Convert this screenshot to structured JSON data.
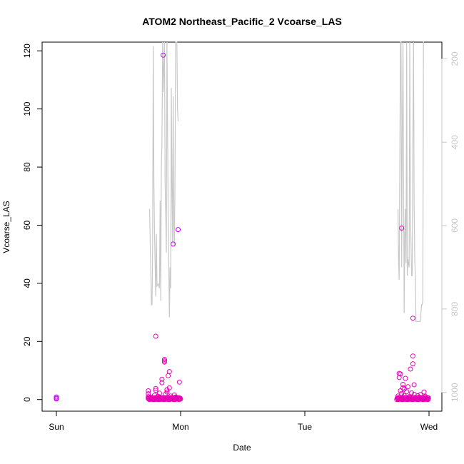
{
  "chart_data": {
    "type": "scatter",
    "title": "ATOM2 Northeast_Pacific_2 Vcoarse_LAS",
    "xlabel": "Date",
    "ylabel": "Vcoarse_LAS",
    "x_ticks": [
      "Sun",
      "Mon",
      "Tue",
      "Wed"
    ],
    "ylim": [
      -4,
      123
    ],
    "y_ticks": [
      0,
      20,
      40,
      60,
      80,
      100,
      120
    ],
    "y2_ticks": [
      200,
      400,
      600,
      800,
      1000
    ],
    "y2_range_reversed": [
      1045,
      160
    ],
    "xlim_days": [
      -0.16,
      3.1
    ],
    "grid": false,
    "colors": {
      "points": "#e600b4",
      "points_alt": "#c800ff",
      "secondary_line": "#c8c8c8"
    },
    "series": [
      {
        "values_note": "",
        "points": [
          [
            0.0,
            0.2
          ],
          [
            0.0,
            0.5
          ],
          [
            0.0,
            0.9
          ],
          [
            0.74,
            0.3
          ],
          [
            0.74,
            1.0
          ],
          [
            0.74,
            2.0
          ],
          [
            0.74,
            3.0
          ],
          [
            0.76,
            0.8
          ],
          [
            0.78,
            0.4
          ],
          [
            0.79,
            1.5
          ],
          [
            0.8,
            3.2
          ],
          [
            0.8,
            3.8
          ],
          [
            0.8,
            21.8
          ],
          [
            0.81,
            0.6
          ],
          [
            0.82,
            1.1
          ],
          [
            0.83,
            2.2
          ],
          [
            0.84,
            0.3
          ],
          [
            0.85,
            5.8
          ],
          [
            0.85,
            7.0
          ],
          [
            0.86,
            118.5
          ],
          [
            0.87,
            13.3
          ],
          [
            0.87,
            13.8
          ],
          [
            0.87,
            12.9
          ],
          [
            0.88,
            1.9
          ],
          [
            0.89,
            3.4
          ],
          [
            0.89,
            2.6
          ],
          [
            0.9,
            8.2
          ],
          [
            0.91,
            9.6
          ],
          [
            0.91,
            4.0
          ],
          [
            0.92,
            1.2
          ],
          [
            0.93,
            0.5
          ],
          [
            0.94,
            53.5
          ],
          [
            0.95,
            1.6
          ],
          [
            0.96,
            0.9
          ],
          [
            0.98,
            58.5
          ],
          [
            0.99,
            6.0
          ],
          [
            0.99,
            0.4
          ],
          [
            1.0,
            0.2
          ],
          [
            0.77,
            0.1
          ],
          [
            0.79,
            0.2
          ],
          [
            0.82,
            0.1
          ],
          [
            0.86,
            0.3
          ],
          [
            0.88,
            0.2
          ],
          [
            0.9,
            0.1
          ],
          [
            0.93,
            0.2
          ],
          [
            0.95,
            0.1
          ],
          [
            0.97,
            0.3
          ],
          [
            2.75,
            0.3
          ],
          [
            2.75,
            1.2
          ],
          [
            2.76,
            7.6
          ],
          [
            2.76,
            9.0
          ],
          [
            2.77,
            3.0
          ],
          [
            2.77,
            8.8
          ],
          [
            2.78,
            2.1
          ],
          [
            2.78,
            59.0
          ],
          [
            2.79,
            5.2
          ],
          [
            2.79,
            4.0
          ],
          [
            2.8,
            1.4
          ],
          [
            2.8,
            3.6
          ],
          [
            2.81,
            7.3
          ],
          [
            2.82,
            2.7
          ],
          [
            2.83,
            4.4
          ],
          [
            2.84,
            1.0
          ],
          [
            2.85,
            10.5
          ],
          [
            2.86,
            2.3
          ],
          [
            2.87,
            12.3
          ],
          [
            2.87,
            15.0
          ],
          [
            2.87,
            28.0
          ],
          [
            2.88,
            5.1
          ],
          [
            2.88,
            1.8
          ],
          [
            2.9,
            0.6
          ],
          [
            2.91,
            1.3
          ],
          [
            2.92,
            0.8
          ],
          [
            2.93,
            1.7
          ],
          [
            2.95,
            0.5
          ],
          [
            2.96,
            2.6
          ],
          [
            2.97,
            1.1
          ],
          [
            2.98,
            0.4
          ],
          [
            2.99,
            0.2
          ],
          [
            2.76,
            0.1
          ],
          [
            2.78,
            0.2
          ],
          [
            2.81,
            0.1
          ],
          [
            2.84,
            0.3
          ],
          [
            2.86,
            0.1
          ],
          [
            2.89,
            0.2
          ],
          [
            2.91,
            0.1
          ],
          [
            2.94,
            0.2
          ],
          [
            2.96,
            0.1
          ]
        ]
      },
      {
        "values_note": "",
        "axis": "right-reversed",
        "line": [
          [
            0.75,
            560
          ],
          [
            0.76,
            700
          ],
          [
            0.765,
            790
          ],
          [
            0.77,
            790
          ],
          [
            0.775,
            650
          ],
          [
            0.78,
            170
          ],
          [
            0.785,
            500
          ],
          [
            0.79,
            620
          ],
          [
            0.8,
            770
          ],
          [
            0.805,
            620
          ],
          [
            0.81,
            745
          ],
          [
            0.82,
            740
          ],
          [
            0.83,
            750
          ],
          [
            0.835,
            540
          ],
          [
            0.84,
            780
          ],
          [
            0.845,
            460
          ],
          [
            0.85,
            400
          ],
          [
            0.855,
            160
          ],
          [
            0.86,
            280
          ],
          [
            0.87,
            160
          ],
          [
            0.875,
            500
          ],
          [
            0.88,
            560
          ],
          [
            0.885,
            665
          ],
          [
            0.89,
            160
          ],
          [
            0.9,
            580
          ],
          [
            0.91,
            820
          ],
          [
            0.915,
            700
          ],
          [
            0.92,
            750
          ],
          [
            0.925,
            270
          ],
          [
            0.93,
            510
          ],
          [
            0.935,
            640
          ],
          [
            0.94,
            290
          ],
          [
            0.945,
            600
          ],
          [
            0.95,
            650
          ],
          [
            0.955,
            470
          ],
          [
            0.96,
            160
          ],
          [
            0.97,
            160
          ],
          [
            0.975,
            320
          ],
          [
            0.98,
            350
          ],
          [
            2.75,
            560
          ],
          [
            2.755,
            690
          ],
          [
            2.76,
            730
          ],
          [
            2.77,
            160
          ],
          [
            2.775,
            160
          ],
          [
            2.78,
            700
          ],
          [
            2.785,
            360
          ],
          [
            2.79,
            160
          ],
          [
            2.8,
            810
          ],
          [
            2.805,
            620
          ],
          [
            2.81,
            560
          ],
          [
            2.815,
            690
          ],
          [
            2.82,
            160
          ],
          [
            2.825,
            720
          ],
          [
            2.83,
            680
          ],
          [
            2.84,
            700
          ],
          [
            2.845,
            160
          ],
          [
            2.85,
            560
          ],
          [
            2.86,
            720
          ],
          [
            2.865,
            720
          ],
          [
            2.87,
            390
          ],
          [
            2.875,
            160
          ],
          [
            2.88,
            530
          ],
          [
            2.885,
            680
          ],
          [
            2.89,
            725
          ],
          [
            2.895,
            830
          ],
          [
            2.9,
            830
          ],
          [
            2.93,
            830
          ],
          [
            2.94,
            790
          ],
          [
            2.945,
            790
          ],
          [
            2.95,
            780
          ],
          [
            2.955,
            160
          ],
          [
            2.96,
            160
          ]
        ]
      }
    ]
  }
}
